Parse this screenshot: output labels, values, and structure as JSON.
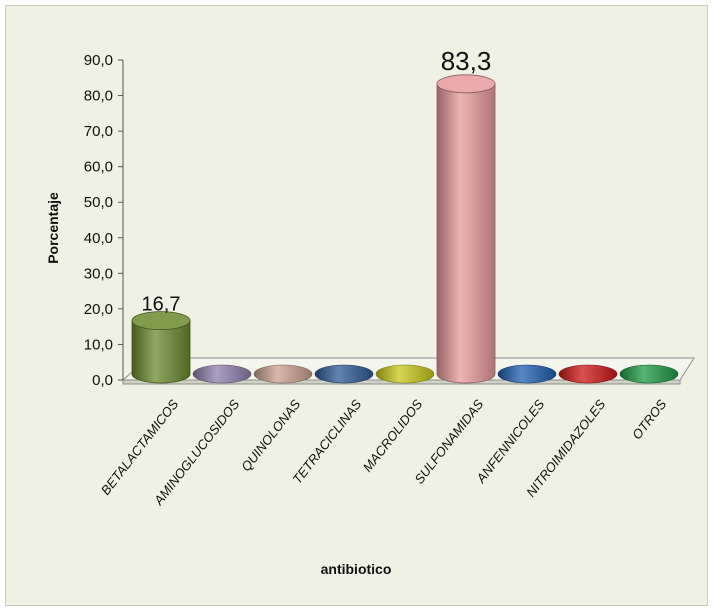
{
  "chart_data": {
    "type": "bar",
    "style": "3d-cylinder",
    "title": "",
    "xlabel": "antibiotico",
    "ylabel": "Porcentaje",
    "ylim": [
      0,
      90
    ],
    "yticks": [
      "0,0",
      "10,0",
      "20,0",
      "30,0",
      "40,0",
      "50,0",
      "60,0",
      "70,0",
      "80,0",
      "90,0"
    ],
    "categories": [
      "BETALACTAMICOS",
      "AMINOGLUCOSIDOS",
      "QUINOLONAS",
      "TETRACICLINAS",
      "MACROLIDOS",
      "SULFONAMIDAS",
      "ANFENNICOLES",
      "NITROIMIDAZOLES",
      "OTROS"
    ],
    "values": [
      16.7,
      0,
      0,
      0,
      0,
      83.3,
      0,
      0,
      0
    ],
    "data_labels": [
      "16,7",
      "",
      "",
      "",
      "",
      "83,3",
      "",
      "",
      ""
    ],
    "colors": [
      "#6b8a2e",
      "#8f7fae",
      "#c9a08f",
      "#2e5b96",
      "#c8c81c",
      "#e89a9c",
      "#1f5fb0",
      "#d01818",
      "#1e9a45"
    ],
    "grid": false,
    "legend": "none"
  }
}
